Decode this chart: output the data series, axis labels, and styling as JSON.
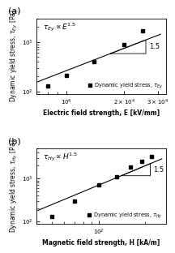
{
  "panel_a": {
    "title": "$\\tau_{Ey} \\propto E^{1.5}$",
    "xlabel": "Electric field strength, E [kV/mm]",
    "ylabel": "Dynamic yield stress, $\\tau_{Ey}$ [Pa]",
    "legend_label": "Dynamic yield stress, $\\tau_{Ey}$",
    "x_data": [
      8000,
      10000,
      14000,
      20000,
      25000
    ],
    "y_data": [
      130,
      210,
      400,
      900,
      1700
    ],
    "xlim": [
      7000,
      33000
    ],
    "ylim": [
      90,
      3000
    ],
    "fit_x_start": 7000,
    "fit_x_end": 31000,
    "tri_x1": 17000,
    "tri_x2": 26000,
    "xticks": [
      10000,
      20000,
      30000
    ],
    "xtick_labels": [
      "$10^4$",
      "$2\\times10^4$",
      "$3\\times10^4$"
    ],
    "yticks": [
      100,
      1000
    ],
    "ytick_labels": [
      "$10^2$",
      "$10^3$"
    ]
  },
  "panel_b": {
    "title": "$\\tau_{Hy} \\propto \\mathit{H}^{1.5}$",
    "xlabel": "Magnetic field strength, H [kA/m]",
    "ylabel": "Dynamic yield stress, $\\tau_{Hy}$ [Pa]",
    "legend_label": "Dynamic yield stress, $\\tau_{Hy}$",
    "x_data": [
      50,
      70,
      100,
      130,
      160,
      190,
      220
    ],
    "y_data": [
      130,
      300,
      700,
      1100,
      1800,
      2500,
      3200
    ],
    "xlim": [
      40,
      270
    ],
    "ylim": [
      90,
      5000
    ],
    "fit_x_start": 40,
    "fit_x_end": 255,
    "tri_x1": 140,
    "tri_x2": 215,
    "xticks": [
      100
    ],
    "xtick_labels": [
      "$10^2$"
    ],
    "yticks": [
      100,
      1000
    ],
    "ytick_labels": [
      "$10^2$",
      "$10^3$"
    ]
  },
  "marker": "s",
  "markersize": 3.0,
  "color": "black",
  "linecolor": "black",
  "linewidth": 0.8,
  "fontsize_label": 5.5,
  "fontsize_tick": 5.0,
  "fontsize_title": 6.5,
  "fontsize_legend": 4.8,
  "fontsize_slope": 6.0,
  "panel_label_fontsize": 8.0
}
